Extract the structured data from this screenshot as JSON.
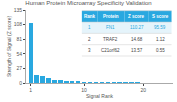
{
  "chart_data": {
    "type": "bar",
    "title": "Human Protein Microarray Specificity Validation",
    "xlabel": "Signal Rank",
    "ylabel": "Strength of Signal (Z score)",
    "x": [
      1,
      2,
      3,
      4,
      5,
      6,
      7,
      8,
      9,
      10,
      11,
      12,
      13,
      14,
      15,
      16,
      17,
      18,
      19,
      20,
      21,
      22,
      23,
      24,
      25
    ],
    "values": [
      110.27,
      14.68,
      13.57,
      8.5,
      6.2,
      4.8,
      3.9,
      3.2,
      2.8,
      2.4,
      2.1,
      1.9,
      1.7,
      1.5,
      1.4,
      1.3,
      1.2,
      1.1,
      1.0,
      0.9,
      0.8,
      0.75,
      0.7,
      0.65,
      0.6
    ],
    "color": "#29a8e0",
    "xlim": [
      0.2,
      25
    ],
    "xticks": [
      1,
      10,
      20
    ],
    "ylim": [
      0,
      135
    ],
    "yticks": [
      0,
      27,
      54,
      81,
      108,
      135
    ],
    "grid": false,
    "table": [
      [
        "Rank",
        "Protein",
        "Z score",
        "S score"
      ],
      [
        "1",
        "FN1",
        "110.27",
        "95.59"
      ],
      [
        "2",
        "TRAF2",
        "14.68",
        "1.12"
      ],
      [
        "3",
        "C21orf62",
        "13.57",
        "0.55"
      ]
    ]
  }
}
